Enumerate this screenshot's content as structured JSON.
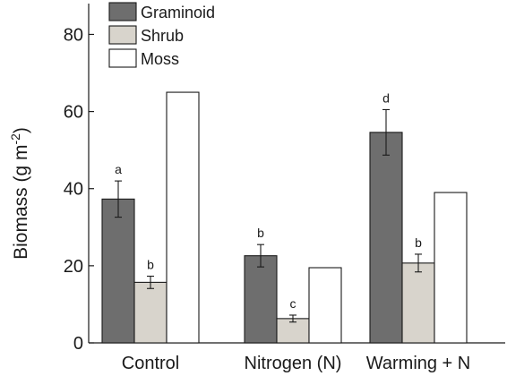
{
  "chart_data": {
    "type": "bar",
    "title": "",
    "xlabel": "",
    "ylabel": "Biomass (g m-2)",
    "ylabel_parts": {
      "main": "Biomass (g m",
      "sup": "-2",
      "close": ")"
    },
    "ylim": [
      0,
      88
    ],
    "yticks": [
      0,
      20,
      40,
      60,
      80
    ],
    "grid": false,
    "legend_position": "top-left",
    "categories": [
      "Control",
      "Nitrogen (N)",
      "Warming + N"
    ],
    "series": [
      {
        "name": "Graminoid",
        "color": "#6e6e6e",
        "values": [
          37.3,
          22.6,
          54.6
        ],
        "errors": [
          4.7,
          2.9,
          5.9
        ],
        "labels": [
          "a",
          "b",
          "d"
        ]
      },
      {
        "name": "Shrub",
        "color": "#d8d4cc",
        "values": [
          15.7,
          6.3,
          20.7
        ],
        "errors": [
          1.6,
          0.9,
          2.3
        ],
        "labels": [
          "b",
          "c",
          "b"
        ]
      },
      {
        "name": "Moss",
        "color": "#ffffff",
        "values": [
          65.0,
          19.5,
          39.0
        ],
        "errors": [
          null,
          null,
          null
        ],
        "labels": [
          "",
          "",
          ""
        ]
      }
    ]
  }
}
